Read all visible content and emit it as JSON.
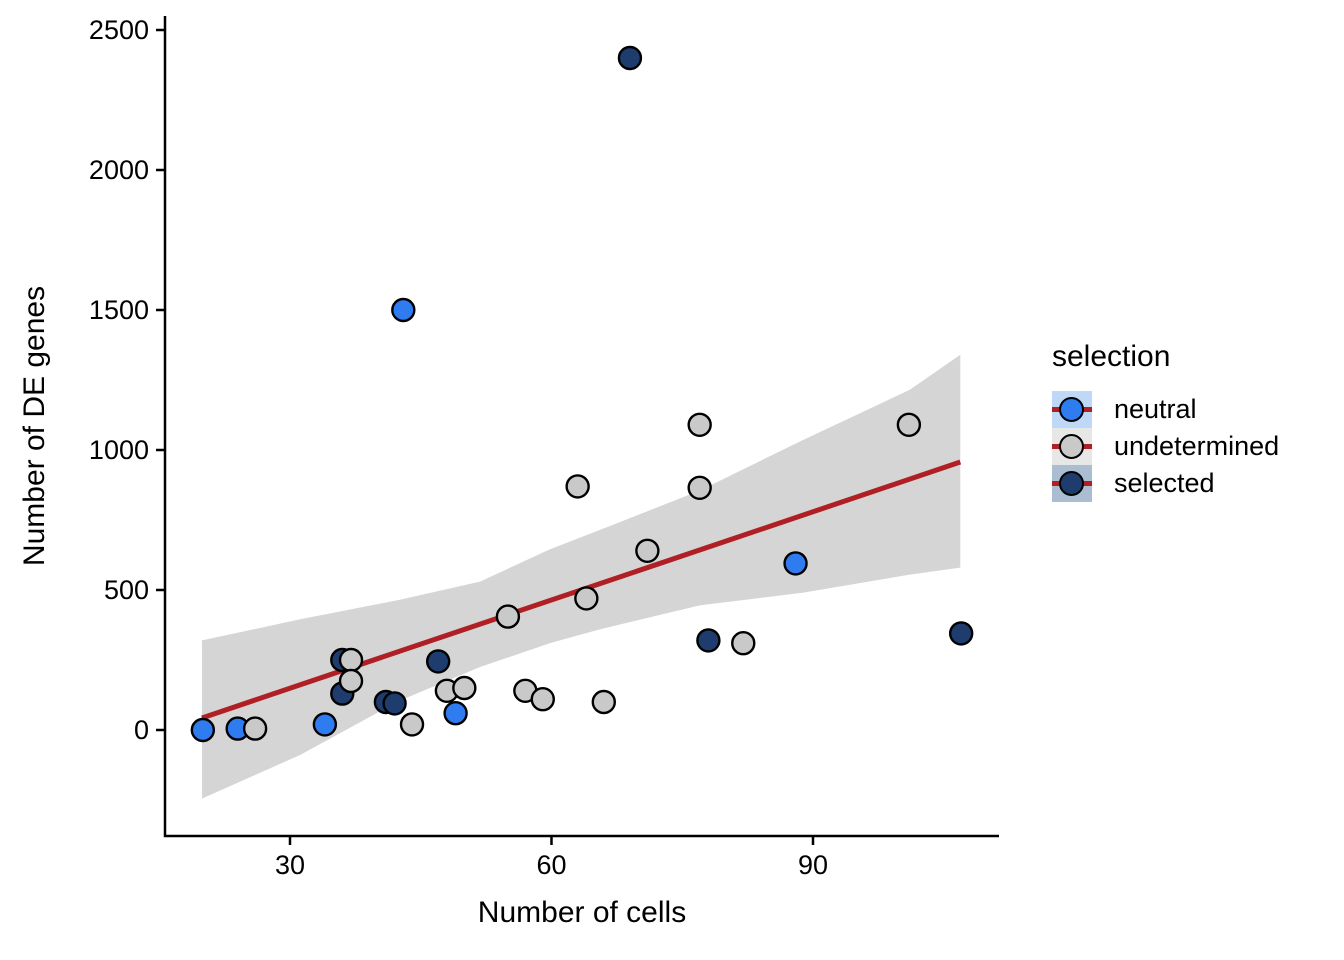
{
  "chart_data": {
    "type": "scatter",
    "title": "",
    "xlabel": "Number of cells",
    "ylabel": "Number of DE genes",
    "x_ticks": [
      30,
      60,
      90
    ],
    "y_ticks": [
      0,
      500,
      1000,
      1500,
      2000,
      2500
    ],
    "xlim": [
      15.66,
      111.34
    ],
    "ylim": [
      -378.6,
      2550
    ],
    "grid": false,
    "legend": {
      "title": "selection",
      "position": "right",
      "items": [
        {
          "label": "neutral",
          "point_color": "#2E7CF0",
          "key_bg": "#BED9F7"
        },
        {
          "label": "undetermined",
          "point_color": "#C9C9C9",
          "key_bg": "#E7E7E7"
        },
        {
          "label": "selected",
          "point_color": "#1E3D6E",
          "key_bg": "#ABBDD1"
        }
      ]
    },
    "colors": {
      "line": "#B01F24",
      "band": "#D5D5D5",
      "point_stroke": "#000000",
      "axis": "#000000"
    },
    "series": [
      {
        "name": "neutral",
        "color": "#2E7CF0",
        "points": [
          [
            20,
            0
          ],
          [
            24,
            5
          ],
          [
            34,
            20
          ],
          [
            43,
            1500
          ],
          [
            49,
            60
          ],
          [
            88,
            595
          ]
        ]
      },
      {
        "name": "undetermined",
        "color": "#C9C9C9",
        "points": [
          [
            26,
            5
          ],
          [
            37,
            250
          ],
          [
            37,
            175
          ],
          [
            44,
            20
          ],
          [
            48,
            140
          ],
          [
            50,
            150
          ],
          [
            55,
            405
          ],
          [
            57,
            140
          ],
          [
            59,
            110
          ],
          [
            63,
            870
          ],
          [
            64,
            470
          ],
          [
            66,
            100
          ],
          [
            71,
            640
          ],
          [
            77,
            1090
          ],
          [
            77,
            865
          ],
          [
            82,
            310
          ],
          [
            101,
            1090
          ]
        ]
      },
      {
        "name": "selected",
        "color": "#1E3D6E",
        "points": [
          [
            36,
            250
          ],
          [
            36,
            130
          ],
          [
            41,
            100
          ],
          [
            42,
            95
          ],
          [
            47,
            245
          ],
          [
            69,
            2400
          ],
          [
            78,
            320
          ],
          [
            107,
            345
          ]
        ]
      }
    ],
    "draw_order": [
      "neutral",
      "selected",
      "undetermined"
    ],
    "smooth": {
      "line": {
        "x": [
          19.9,
          106.9
        ],
        "y": [
          43,
          957
        ]
      },
      "band": {
        "x": [
          19.9,
          31.1,
          42.6,
          51.8,
          59.8,
          65.6,
          77.0,
          88.8,
          101.1,
          106.9
        ],
        "ymax": [
          320,
          395,
          465,
          530,
          645,
          715,
          855,
          1035,
          1215,
          1340
        ],
        "ymin": [
          -245,
          -90,
          105,
          225,
          310,
          360,
          445,
          490,
          555,
          580
        ]
      }
    }
  }
}
